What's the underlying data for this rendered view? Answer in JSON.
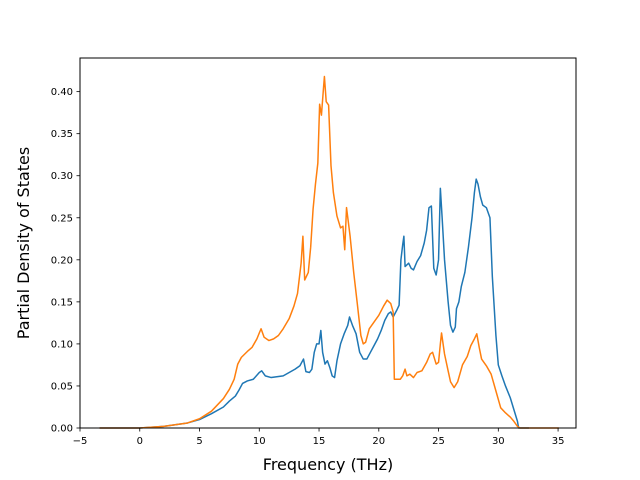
{
  "chart_data": {
    "type": "line",
    "title": "",
    "xlabel": "Frequency (THz)",
    "ylabel": "Partial Density of States",
    "xlim": [
      -5,
      36.5
    ],
    "ylim": [
      0,
      0.44
    ],
    "x_ticks": [
      -5,
      0,
      5,
      10,
      15,
      20,
      25,
      30,
      35
    ],
    "x_tick_labels": [
      "−5",
      "0",
      "5",
      "10",
      "15",
      "20",
      "25",
      "30",
      "35"
    ],
    "y_ticks": [
      0.0,
      0.05,
      0.1,
      0.15,
      0.2,
      0.25,
      0.3,
      0.35,
      0.4
    ],
    "y_tick_labels": [
      "0.00",
      "0.05",
      "0.10",
      "0.15",
      "0.20",
      "0.25",
      "0.30",
      "0.35",
      "0.40"
    ],
    "grid": false,
    "legend": "none",
    "series": [
      {
        "color": "#1f77b4",
        "points": [
          [
            -3.3,
            0.0
          ],
          [
            0.0,
            0.0
          ],
          [
            2.0,
            0.002
          ],
          [
            4.0,
            0.006
          ],
          [
            5.0,
            0.01
          ],
          [
            6.0,
            0.017
          ],
          [
            7.0,
            0.025
          ],
          [
            7.5,
            0.032
          ],
          [
            8.0,
            0.038
          ],
          [
            8.3,
            0.045
          ],
          [
            8.6,
            0.053
          ],
          [
            9.0,
            0.056
          ],
          [
            9.5,
            0.058
          ],
          [
            10.0,
            0.066
          ],
          [
            10.2,
            0.068
          ],
          [
            10.5,
            0.062
          ],
          [
            11.0,
            0.06
          ],
          [
            12.0,
            0.062
          ],
          [
            12.5,
            0.066
          ],
          [
            13.0,
            0.07
          ],
          [
            13.4,
            0.074
          ],
          [
            13.7,
            0.082
          ],
          [
            13.9,
            0.067
          ],
          [
            14.2,
            0.066
          ],
          [
            14.4,
            0.07
          ],
          [
            14.6,
            0.09
          ],
          [
            14.8,
            0.1
          ],
          [
            15.0,
            0.1
          ],
          [
            15.15,
            0.116
          ],
          [
            15.3,
            0.09
          ],
          [
            15.5,
            0.076
          ],
          [
            15.7,
            0.08
          ],
          [
            15.9,
            0.072
          ],
          [
            16.1,
            0.062
          ],
          [
            16.3,
            0.06
          ],
          [
            16.5,
            0.08
          ],
          [
            16.8,
            0.1
          ],
          [
            17.1,
            0.112
          ],
          [
            17.4,
            0.122
          ],
          [
            17.55,
            0.132
          ],
          [
            17.8,
            0.122
          ],
          [
            18.1,
            0.112
          ],
          [
            18.4,
            0.09
          ],
          [
            18.7,
            0.082
          ],
          [
            19.0,
            0.082
          ],
          [
            19.3,
            0.09
          ],
          [
            19.6,
            0.098
          ],
          [
            19.9,
            0.106
          ],
          [
            20.2,
            0.116
          ],
          [
            20.5,
            0.128
          ],
          [
            20.8,
            0.136
          ],
          [
            21.0,
            0.138
          ],
          [
            21.2,
            0.132
          ],
          [
            21.5,
            0.14
          ],
          [
            21.7,
            0.146
          ],
          [
            21.85,
            0.2
          ],
          [
            22.0,
            0.218
          ],
          [
            22.1,
            0.228
          ],
          [
            22.2,
            0.192
          ],
          [
            22.5,
            0.196
          ],
          [
            22.7,
            0.19
          ],
          [
            22.9,
            0.188
          ],
          [
            23.2,
            0.198
          ],
          [
            23.5,
            0.205
          ],
          [
            23.8,
            0.22
          ],
          [
            24.0,
            0.235
          ],
          [
            24.2,
            0.262
          ],
          [
            24.4,
            0.264
          ],
          [
            24.6,
            0.19
          ],
          [
            24.8,
            0.182
          ],
          [
            25.0,
            0.2
          ],
          [
            25.15,
            0.285
          ],
          [
            25.3,
            0.25
          ],
          [
            25.5,
            0.2
          ],
          [
            25.8,
            0.15
          ],
          [
            26.0,
            0.122
          ],
          [
            26.2,
            0.114
          ],
          [
            26.4,
            0.12
          ],
          [
            26.5,
            0.142
          ],
          [
            26.7,
            0.15
          ],
          [
            26.9,
            0.168
          ],
          [
            27.2,
            0.185
          ],
          [
            27.5,
            0.215
          ],
          [
            27.8,
            0.25
          ],
          [
            28.0,
            0.28
          ],
          [
            28.15,
            0.296
          ],
          [
            28.3,
            0.29
          ],
          [
            28.5,
            0.275
          ],
          [
            28.7,
            0.265
          ],
          [
            29.0,
            0.262
          ],
          [
            29.3,
            0.25
          ],
          [
            29.5,
            0.18
          ],
          [
            29.8,
            0.11
          ],
          [
            30.0,
            0.075
          ],
          [
            30.3,
            0.062
          ],
          [
            30.6,
            0.05
          ],
          [
            31.0,
            0.036
          ],
          [
            31.3,
            0.022
          ],
          [
            31.6,
            0.008
          ],
          [
            31.7,
            0.0
          ],
          [
            32.5,
            0.0
          ]
        ]
      },
      {
        "color": "#ff7f0e",
        "points": [
          [
            -3.3,
            0.0
          ],
          [
            0.0,
            0.0
          ],
          [
            2.0,
            0.002
          ],
          [
            4.0,
            0.006
          ],
          [
            5.0,
            0.011
          ],
          [
            6.0,
            0.02
          ],
          [
            7.0,
            0.035
          ],
          [
            7.5,
            0.046
          ],
          [
            7.9,
            0.058
          ],
          [
            8.2,
            0.076
          ],
          [
            8.5,
            0.084
          ],
          [
            9.0,
            0.091
          ],
          [
            9.4,
            0.096
          ],
          [
            9.8,
            0.106
          ],
          [
            10.0,
            0.113
          ],
          [
            10.15,
            0.118
          ],
          [
            10.4,
            0.108
          ],
          [
            10.8,
            0.104
          ],
          [
            11.2,
            0.106
          ],
          [
            11.6,
            0.11
          ],
          [
            12.0,
            0.118
          ],
          [
            12.5,
            0.13
          ],
          [
            12.9,
            0.145
          ],
          [
            13.2,
            0.16
          ],
          [
            13.5,
            0.196
          ],
          [
            13.65,
            0.228
          ],
          [
            13.8,
            0.176
          ],
          [
            14.1,
            0.185
          ],
          [
            14.3,
            0.215
          ],
          [
            14.5,
            0.26
          ],
          [
            14.7,
            0.29
          ],
          [
            14.9,
            0.315
          ],
          [
            15.05,
            0.385
          ],
          [
            15.2,
            0.372
          ],
          [
            15.35,
            0.4
          ],
          [
            15.45,
            0.418
          ],
          [
            15.6,
            0.388
          ],
          [
            15.8,
            0.384
          ],
          [
            16.0,
            0.312
          ],
          [
            16.2,
            0.28
          ],
          [
            16.5,
            0.252
          ],
          [
            16.8,
            0.238
          ],
          [
            17.0,
            0.24
          ],
          [
            17.15,
            0.212
          ],
          [
            17.3,
            0.262
          ],
          [
            17.6,
            0.228
          ],
          [
            17.9,
            0.185
          ],
          [
            18.2,
            0.148
          ],
          [
            18.5,
            0.11
          ],
          [
            18.7,
            0.1
          ],
          [
            18.9,
            0.102
          ],
          [
            19.2,
            0.118
          ],
          [
            19.6,
            0.126
          ],
          [
            20.0,
            0.134
          ],
          [
            20.4,
            0.145
          ],
          [
            20.7,
            0.152
          ],
          [
            21.0,
            0.148
          ],
          [
            21.2,
            0.138
          ],
          [
            21.3,
            0.058
          ],
          [
            21.8,
            0.058
          ],
          [
            22.0,
            0.062
          ],
          [
            22.2,
            0.07
          ],
          [
            22.35,
            0.062
          ],
          [
            22.6,
            0.064
          ],
          [
            22.9,
            0.06
          ],
          [
            23.2,
            0.066
          ],
          [
            23.6,
            0.068
          ],
          [
            24.0,
            0.078
          ],
          [
            24.3,
            0.088
          ],
          [
            24.5,
            0.09
          ],
          [
            24.8,
            0.076
          ],
          [
            25.0,
            0.078
          ],
          [
            25.15,
            0.1
          ],
          [
            25.25,
            0.113
          ],
          [
            25.5,
            0.088
          ],
          [
            25.8,
            0.068
          ],
          [
            26.0,
            0.055
          ],
          [
            26.3,
            0.048
          ],
          [
            26.6,
            0.055
          ],
          [
            27.0,
            0.075
          ],
          [
            27.4,
            0.085
          ],
          [
            27.7,
            0.098
          ],
          [
            28.0,
            0.106
          ],
          [
            28.2,
            0.112
          ],
          [
            28.4,
            0.096
          ],
          [
            28.6,
            0.082
          ],
          [
            29.0,
            0.074
          ],
          [
            29.4,
            0.064
          ],
          [
            29.8,
            0.044
          ],
          [
            30.2,
            0.024
          ],
          [
            30.6,
            0.018
          ],
          [
            31.0,
            0.013
          ],
          [
            31.3,
            0.008
          ],
          [
            31.6,
            0.002
          ],
          [
            31.8,
            0.0
          ],
          [
            35.0,
            0.0
          ]
        ]
      }
    ]
  }
}
